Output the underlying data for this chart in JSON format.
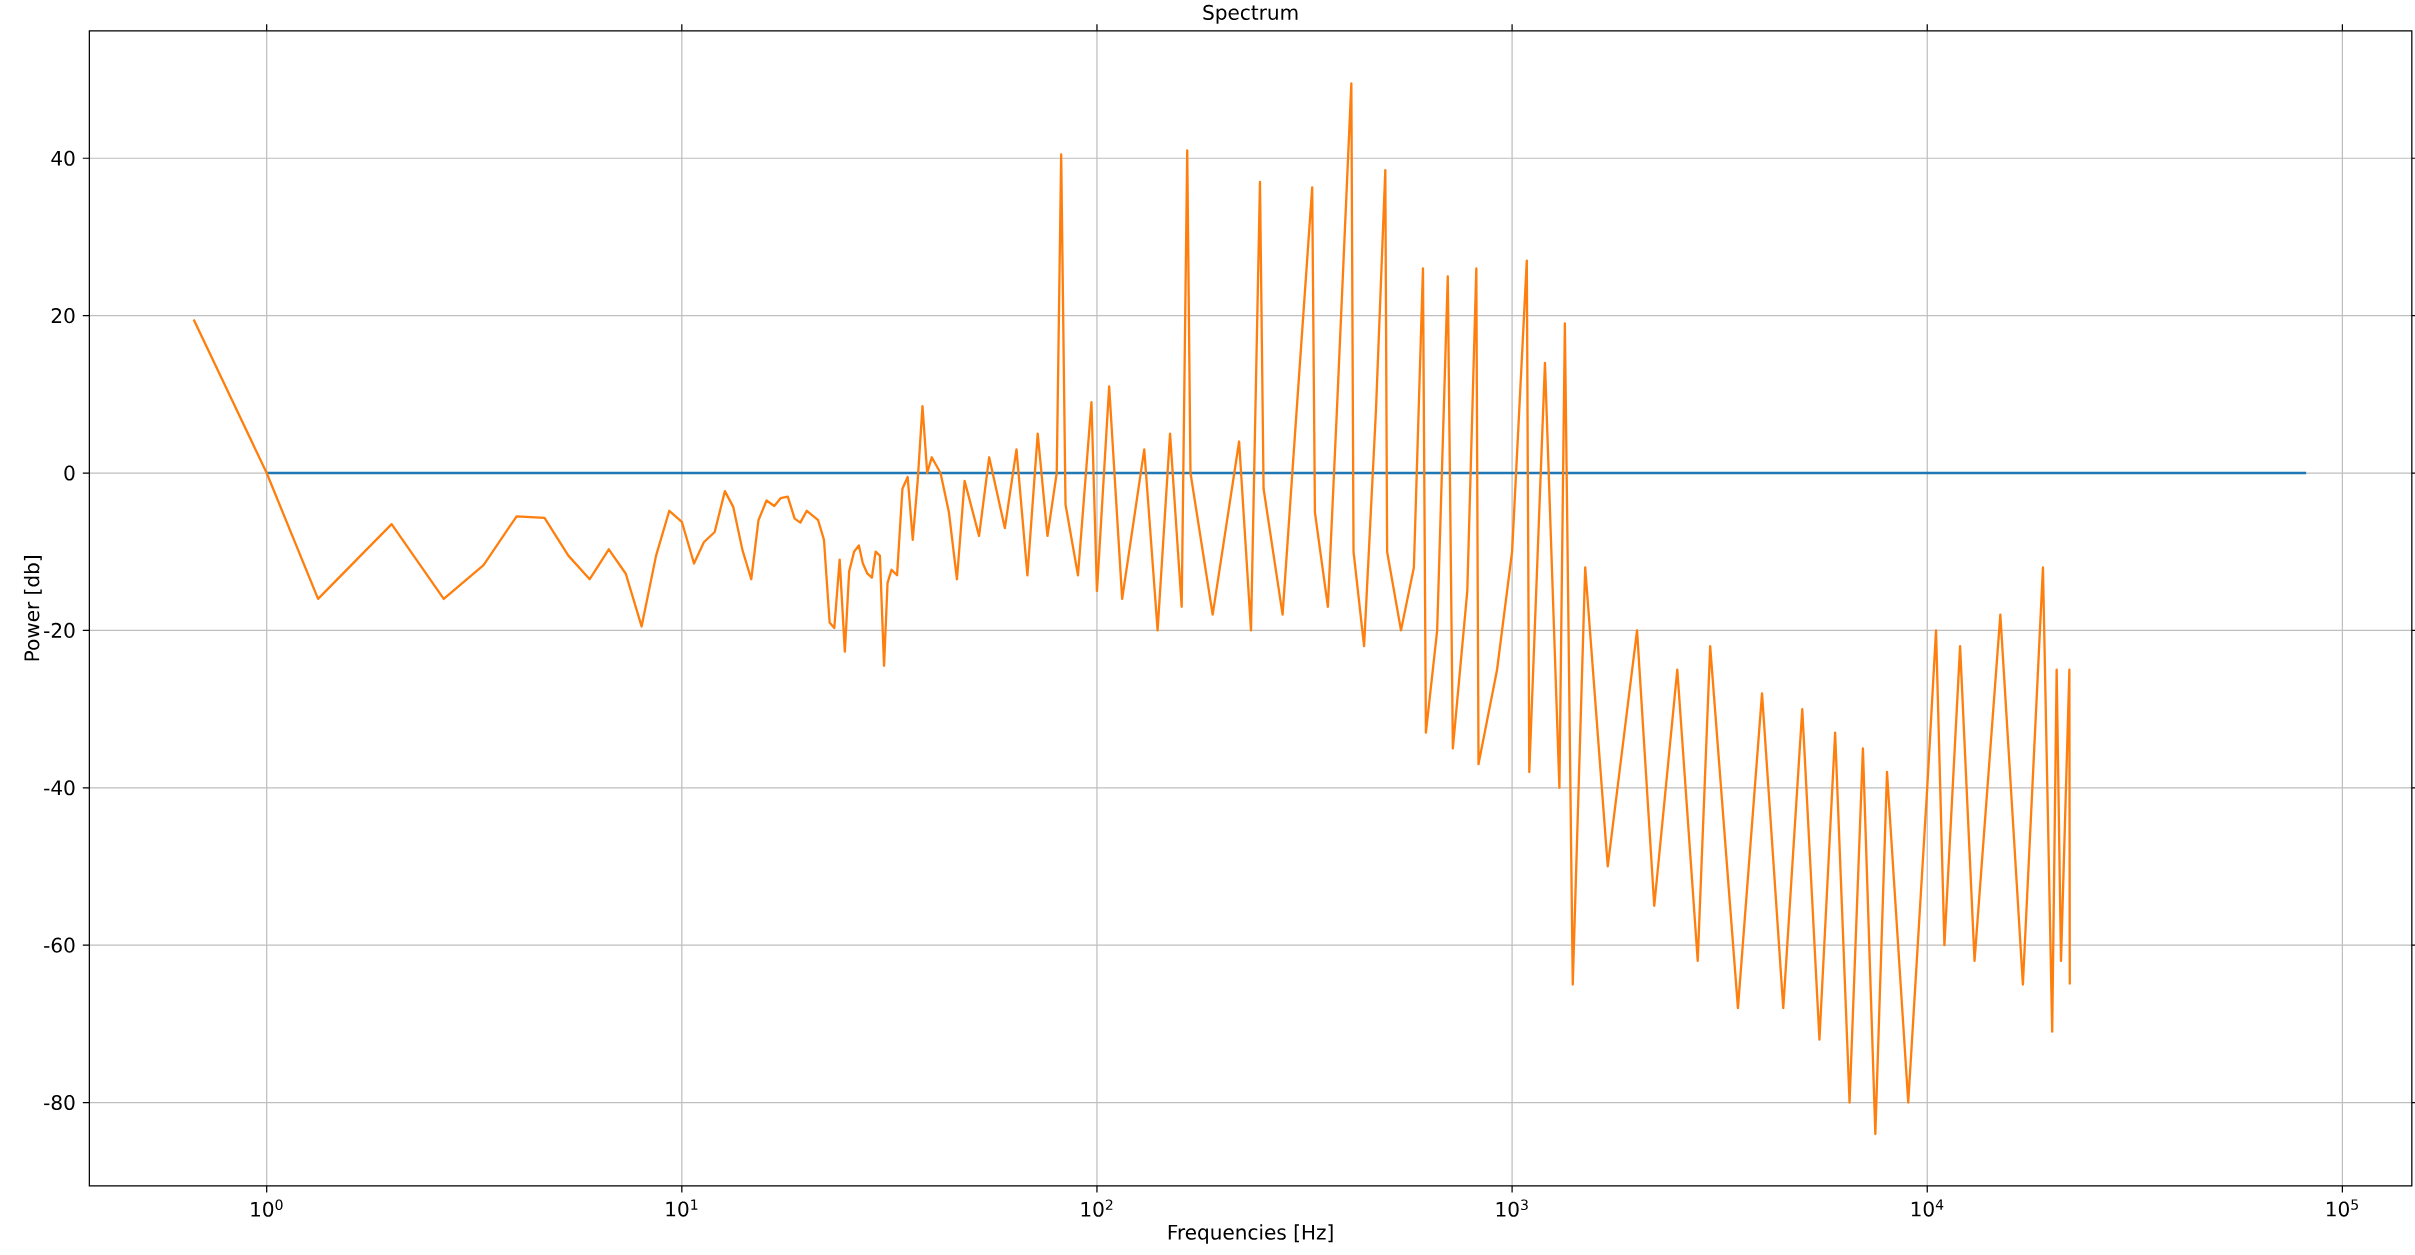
{
  "chart_data": {
    "type": "line",
    "title": "Spectrum",
    "xlabel": "Frequencies [Hz]",
    "ylabel": "Power [db]",
    "log": "x",
    "grid": true,
    "xlim": [
      0.374,
      147000
    ],
    "ylim": [
      -90.6,
      56.2
    ],
    "xticks": [
      {
        "value": 1,
        "label": "10$^{0}$"
      },
      {
        "value": 10,
        "label": "10$^{1}$"
      },
      {
        "value": 100,
        "label": "10$^{2}$"
      },
      {
        "value": 1000,
        "label": "10$^{3}$"
      },
      {
        "value": 10000,
        "label": "10$^{4}$"
      },
      {
        "value": 100000,
        "label": "10$^{5}$"
      }
    ],
    "yticks": [
      -80,
      -60,
      -40,
      -20,
      0,
      20,
      40
    ],
    "series": [
      {
        "color": "#1f77b4",
        "x": [
          1,
          10,
          100,
          1000,
          10000,
          81800
        ],
        "values": [
          0,
          0,
          0,
          0,
          0,
          0
        ]
      },
      {
        "color": "#ff7f0e",
        "x": [
          0.667,
          1.0,
          1.33,
          2.0,
          2.67,
          3.33,
          4.0,
          4.67,
          5.33,
          6.0,
          6.67,
          7.33,
          8.0,
          8.67,
          9.33,
          10.0,
          10.7,
          11.3,
          12.0,
          12.7,
          13.3,
          14.0,
          14.7,
          15.3,
          16.0,
          16.7,
          17.3,
          18.0,
          18.7,
          19.3,
          20.0,
          21.3,
          22.0,
          22.7,
          23.3,
          24.0,
          24.7,
          25.3,
          26.0,
          26.7,
          27.3,
          28.0,
          28.7,
          29.3,
          30.0,
          30.7,
          31.3,
          32,
          33,
          34,
          35,
          36,
          37,
          38,
          39,
          40,
          42,
          44,
          46,
          48,
          52,
          55,
          60,
          64,
          68,
          72,
          76,
          80,
          82,
          84,
          90,
          97,
          100,
          107,
          115,
          130,
          140,
          150,
          160,
          165,
          168,
          190,
          220,
          235,
          247,
          252,
          280,
          300,
          330,
          335,
          360,
          380,
          410,
          415,
          440,
          470,
          495,
          500,
          540,
          580,
          610,
          620,
          660,
          700,
          720,
          780,
          820,
          830,
          920,
          1000,
          1085,
          1100,
          1200,
          1300,
          1340,
          1400,
          1500,
          1700,
          2000,
          2200,
          2500,
          2800,
          3000,
          3500,
          4000,
          4500,
          5000,
          5500,
          6000,
          6500,
          7000,
          7500,
          8000,
          9000,
          10000,
          10500,
          11000,
          12000,
          13000,
          15000,
          17000,
          19000,
          20000,
          20500,
          21000,
          22000,
          22050
        ],
        "values": [
          19.5,
          0,
          -16,
          -6.5,
          -16,
          -11.7,
          -5.5,
          -5.7,
          -10.5,
          -13.5,
          -9.7,
          -12.8,
          -19.5,
          -10.5,
          -4.8,
          -6.2,
          -11.5,
          -8.8,
          -7.5,
          -2.3,
          -4.3,
          -9.8,
          -13.5,
          -6,
          -3.5,
          -4.2,
          -3.2,
          -3,
          -5.8,
          -6.3,
          -4.8,
          -6,
          -8.5,
          -19,
          -19.7,
          -11,
          -22.7,
          -12.5,
          -10,
          -9.2,
          -11.5,
          -12.8,
          -13.3,
          -10,
          -10.5,
          -24.5,
          -14,
          -12.3,
          -13,
          -2,
          -0.5,
          -8.5,
          -1,
          8.5,
          0,
          2,
          0,
          -5,
          -13.5,
          -1,
          -8,
          2,
          -7,
          3,
          -13,
          5,
          -8,
          0,
          40.5,
          -4,
          -13,
          9,
          -15,
          11,
          -16,
          3,
          -20,
          5,
          -17,
          41,
          0,
          -18,
          4,
          -20,
          37,
          -2,
          -18,
          5,
          36.3,
          -5,
          -17,
          10,
          49.5,
          -10,
          -22,
          8,
          38.5,
          -10,
          -20,
          -12,
          26,
          -33,
          -20,
          25,
          -35,
          -15,
          26,
          -37,
          -25,
          -10,
          27,
          -38,
          14,
          -40,
          19,
          -65,
          -12,
          -50,
          -20,
          -55,
          -25,
          -62,
          -22,
          -68,
          -28,
          -68,
          -30,
          -72,
          -33,
          -80,
          -35,
          -84,
          -38,
          -80,
          -40,
          -20,
          -60,
          -22,
          -62,
          -18,
          -65,
          -12,
          -71,
          -25,
          -62,
          -25,
          -65
        ]
      }
    ]
  }
}
